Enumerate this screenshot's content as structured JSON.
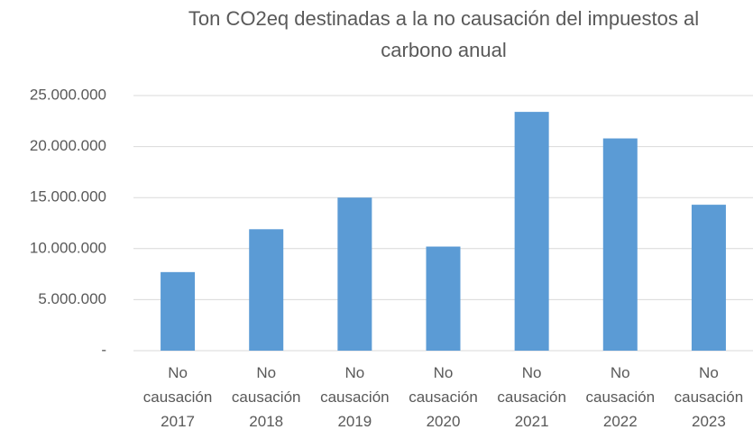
{
  "chart_data": {
    "type": "bar",
    "title": "Ton CO2eq destinadas a la no causación del impuestos al carbono anual",
    "categories": [
      "No causación 2017",
      "No causación 2018",
      "No causación 2019",
      "No causación 2020",
      "No causación 2021",
      "No causación 2022",
      "No causación 2023"
    ],
    "values": [
      7700000,
      11900000,
      15000000,
      10200000,
      23400000,
      20800000,
      14300000
    ],
    "color": "#5b9bd5",
    "ylim": [
      0,
      25000000
    ],
    "yticks": [
      {
        "value": 0,
        "label": "-"
      },
      {
        "value": 5000000,
        "label": "5.000.000"
      },
      {
        "value": 10000000,
        "label": "10.000.000"
      },
      {
        "value": 15000000,
        "label": "15.000.000"
      },
      {
        "value": 20000000,
        "label": "20.000.000"
      },
      {
        "value": 25000000,
        "label": "25.000.000"
      }
    ],
    "grid": true
  }
}
